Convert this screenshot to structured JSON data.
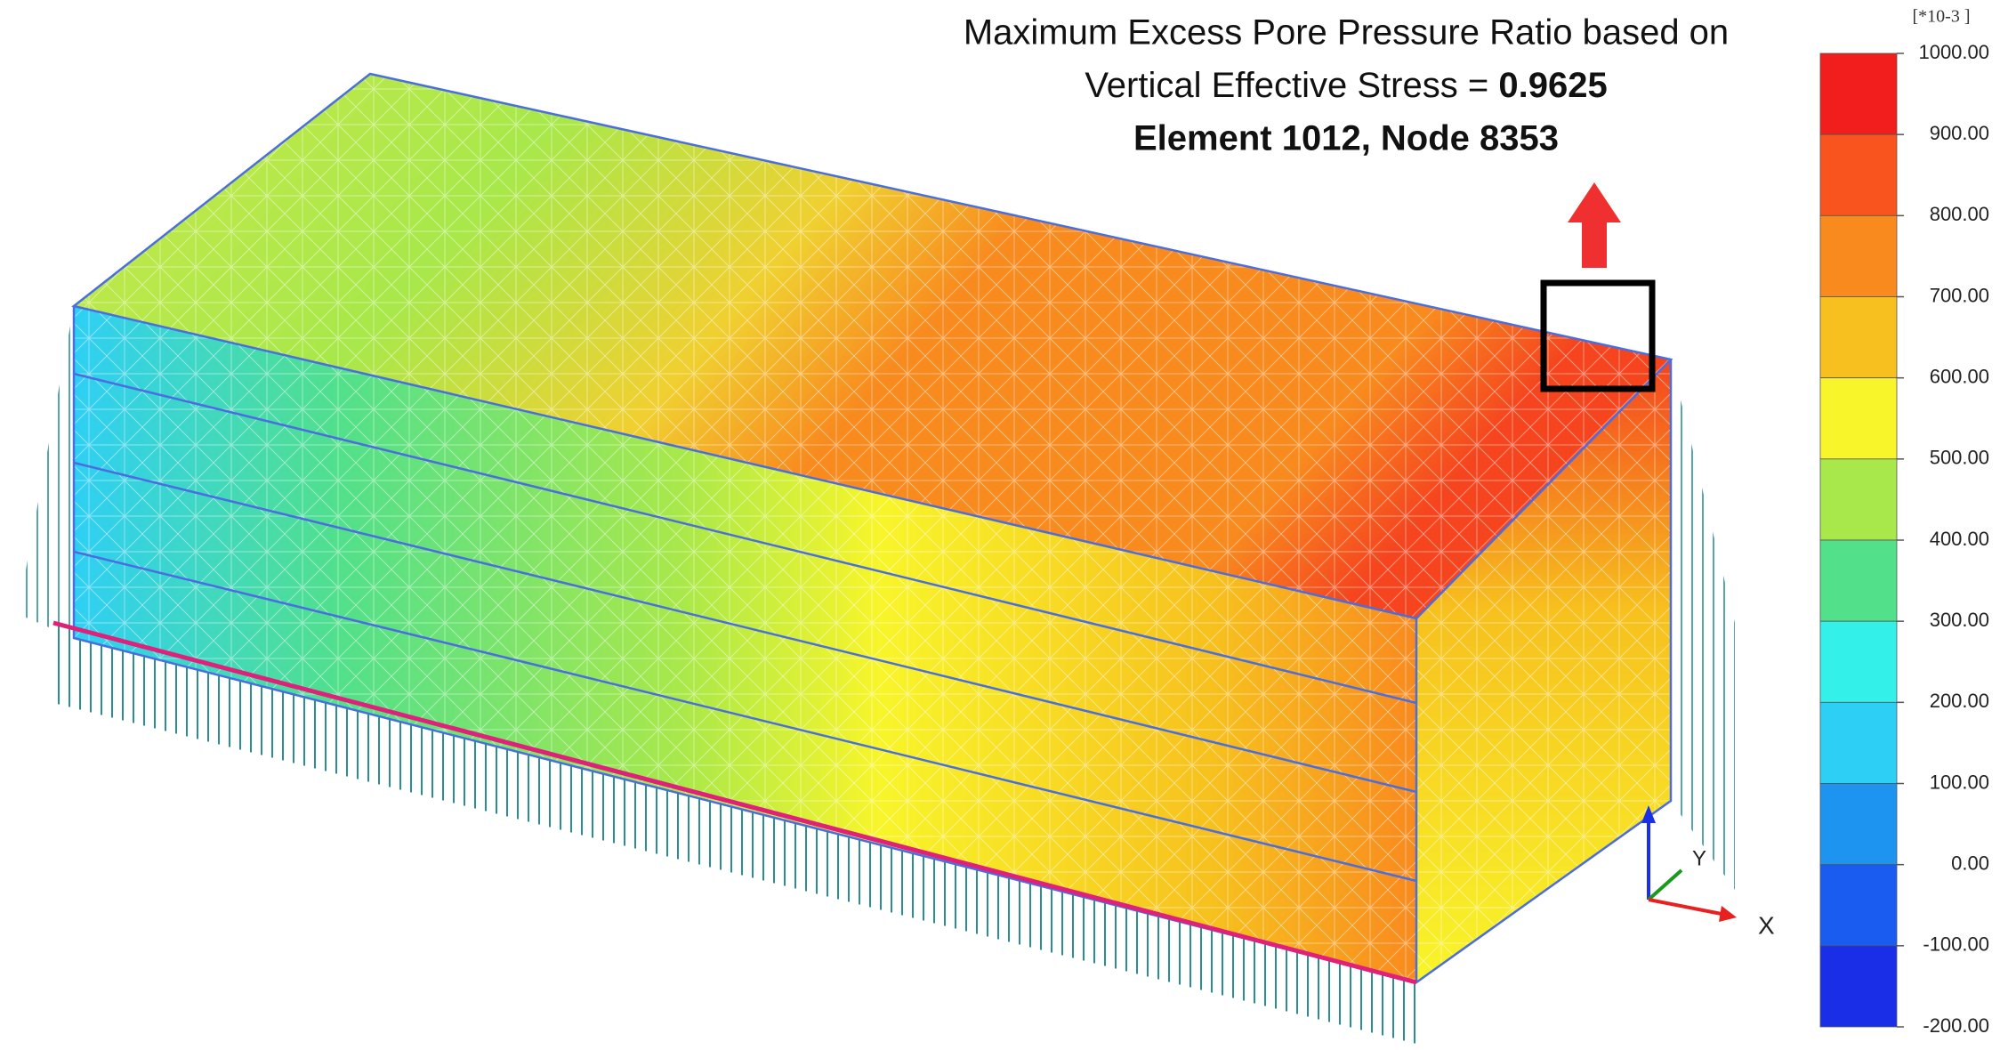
{
  "annotation": {
    "line1": "Maximum Excess Pore Pressure Ratio based on",
    "line2": "Vertical Effective Stress = ",
    "value": "0.9625",
    "line3": "Element 1012, Node 8353"
  },
  "legend": {
    "unit": "[*10-3 ]",
    "levels": [
      {
        "value": 1000,
        "label": "1000.00"
      },
      {
        "value": 900,
        "label": "900.00"
      },
      {
        "value": 800,
        "label": "800.00"
      },
      {
        "value": 700,
        "label": "700.00"
      },
      {
        "value": 600,
        "label": "600.00"
      },
      {
        "value": 500,
        "label": "500.00"
      },
      {
        "value": 400,
        "label": "400.00"
      },
      {
        "value": 300,
        "label": "300.00"
      },
      {
        "value": 200,
        "label": "200.00"
      },
      {
        "value": 100,
        "label": "100.00"
      },
      {
        "value": 0,
        "label": "0.00"
      },
      {
        "value": -100,
        "label": "-100.00"
      },
      {
        "value": -200,
        "label": "-200.00"
      }
    ],
    "colors": [
      "#f21d1d",
      "#f9541e",
      "#f98a1e",
      "#f7c01e",
      "#f8f52a",
      "#a8e84a",
      "#52e08a",
      "#33f0e8",
      "#2ecff5",
      "#1d95f0",
      "#1a5cf0",
      "#1a2ee8"
    ]
  },
  "triad": {
    "x": "X",
    "y": "Y"
  }
}
